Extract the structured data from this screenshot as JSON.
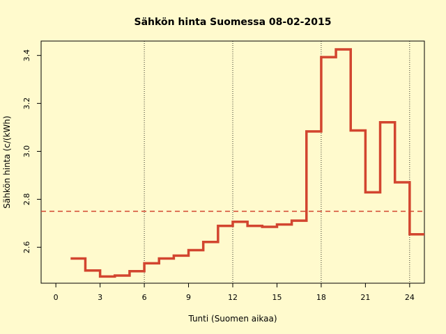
{
  "chart_data": {
    "type": "line",
    "step": true,
    "title": "Sähkön hinta Suomessa 08-02-2015",
    "xlabel": "Tunti (Suomen aikaa)",
    "ylabel": "Sähkön hinta (c/(kWh)",
    "xlim": [
      -1,
      25
    ],
    "ylim": [
      2.45,
      3.46
    ],
    "x_ticks": [
      0,
      3,
      6,
      9,
      12,
      15,
      18,
      21,
      24
    ],
    "x_tick_labels": [
      "0",
      "3",
      "6",
      "9",
      "12",
      "15",
      "18",
      "21",
      "24"
    ],
    "y_ticks": [
      2.6,
      2.8,
      3.0,
      3.2,
      3.4
    ],
    "y_tick_labels": [
      "2.6",
      "2.8",
      "3.0",
      "3.2",
      "3.4"
    ],
    "vertical_lines": [
      6,
      12,
      18,
      24
    ],
    "reference_line": 2.75,
    "line_color": "#d2452f",
    "reference_color": "#d2452f",
    "grid": false,
    "x": [
      1,
      2,
      3,
      4,
      5,
      6,
      7,
      8,
      9,
      10,
      11,
      12,
      13,
      14,
      15,
      16,
      17,
      18,
      19,
      20,
      21,
      22,
      23,
      24
    ],
    "values": [
      2.553,
      2.503,
      2.478,
      2.482,
      2.5,
      2.533,
      2.553,
      2.565,
      2.588,
      2.622,
      2.689,
      2.706,
      2.689,
      2.685,
      2.695,
      2.711,
      3.083,
      3.393,
      3.425,
      3.087,
      2.829,
      3.121,
      2.871,
      2.654
    ]
  }
}
